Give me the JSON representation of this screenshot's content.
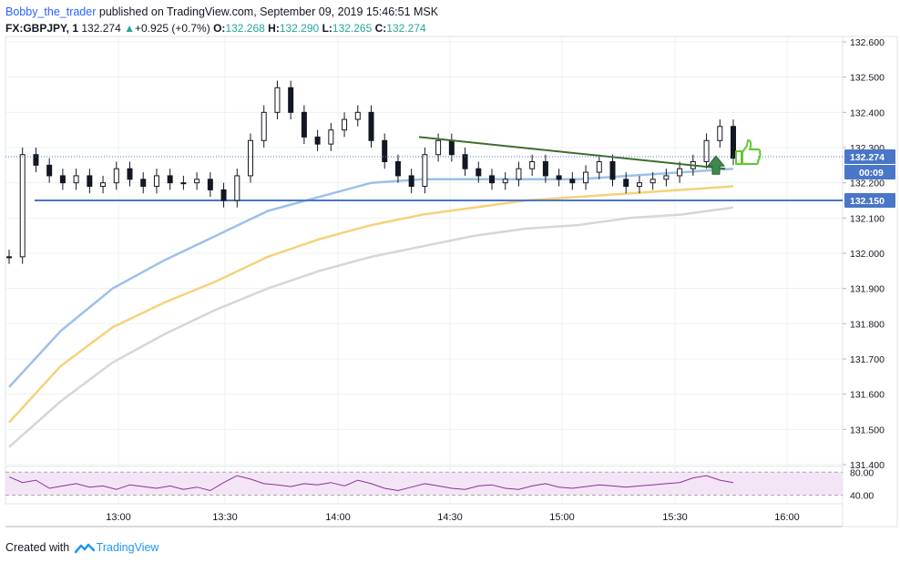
{
  "header": {
    "author": "Bobby_the_trader",
    "published_text": "published on TradingView.com, September 09, 2019 15:46:51 MSK",
    "symbol": "FX:GBPJPY, 1",
    "last_price": "132.274",
    "change": "+0.925 (+0.7%)",
    "o_label": "O:",
    "o_value": "132.268",
    "h_label": "H:",
    "h_value": "132.290",
    "l_label": "L:",
    "l_value": "132.265",
    "c_label": "C:",
    "c_value": "132.274"
  },
  "footer": {
    "created_with": "Created with",
    "brand": "TradingView"
  },
  "colors": {
    "up_arrow": "#26a69a",
    "ema_blue": "#9cc0ea",
    "ema_yellow": "#f5d27a",
    "ema_gray": "#d6d6d6",
    "support_line": "#4a76c7",
    "trend_line": "#3d6e2d",
    "rsi_line": "#8e2f9a",
    "rsi_band": "#f3e5f5"
  },
  "chart_data": {
    "type": "candlestick",
    "price_axis": {
      "ticks": [
        "132.600",
        "132.500",
        "132.400",
        "132.300",
        "132.200",
        "132.100",
        "132.000",
        "131.900",
        "131.800",
        "131.700",
        "131.600",
        "131.500",
        "131.400"
      ],
      "range": [
        131.4,
        132.6
      ]
    },
    "time_axis": {
      "ticks": [
        "13:00",
        "13:30",
        "14:00",
        "14:30",
        "15:00",
        "15:30",
        "16:00"
      ]
    },
    "price_labels": {
      "last_price": "132.274",
      "countdown": "00:09",
      "support": "132.150"
    },
    "support_level": 132.15,
    "trend_line": {
      "start": [
        "14:18",
        132.33
      ],
      "end": [
        "15:46",
        132.24
      ]
    },
    "ema_blue": {
      "values": [
        131.62,
        131.78,
        131.9,
        131.98,
        132.05,
        132.12,
        132.16,
        132.2,
        132.21,
        132.21,
        132.21,
        132.21,
        132.22,
        132.23,
        132.24
      ]
    },
    "ema_yellow": {
      "values": [
        131.52,
        131.68,
        131.79,
        131.86,
        131.92,
        131.99,
        132.04,
        132.08,
        132.11,
        132.13,
        132.15,
        132.16,
        132.17,
        132.18,
        132.19
      ]
    },
    "ema_gray": {
      "values": [
        131.45,
        131.58,
        131.69,
        131.77,
        131.84,
        131.9,
        131.95,
        131.99,
        132.02,
        132.05,
        132.07,
        132.08,
        132.1,
        132.11,
        132.13
      ]
    },
    "closes": [
      131.99,
      132.28,
      132.25,
      132.22,
      132.2,
      132.22,
      132.19,
      132.2,
      132.24,
      132.21,
      132.19,
      132.22,
      132.2,
      132.2,
      132.21,
      132.18,
      132.15,
      132.22,
      132.32,
      132.4,
      132.47,
      132.4,
      132.33,
      132.31,
      132.35,
      132.38,
      132.4,
      132.32,
      132.26,
      132.22,
      132.19,
      132.28,
      132.32,
      132.28,
      132.24,
      132.22,
      132.2,
      132.21,
      132.24,
      132.26,
      132.22,
      132.21,
      132.2,
      132.23,
      132.26,
      132.21,
      132.19,
      132.2,
      132.21,
      132.22,
      132.24,
      132.26,
      132.32,
      132.36,
      132.27
    ],
    "rsi": {
      "ticks": [
        "80.00",
        "40.00"
      ],
      "range": [
        25,
        90
      ],
      "values": [
        72,
        62,
        66,
        52,
        56,
        60,
        54,
        56,
        50,
        58,
        55,
        52,
        56,
        50,
        54,
        48,
        62,
        74,
        68,
        60,
        58,
        55,
        60,
        58,
        62,
        56,
        66,
        60,
        52,
        48,
        54,
        60,
        56,
        52,
        50,
        56,
        58,
        52,
        50,
        56,
        60,
        54,
        52,
        55,
        58,
        56,
        54,
        56,
        58,
        60,
        62,
        70,
        74,
        66,
        62
      ]
    }
  }
}
